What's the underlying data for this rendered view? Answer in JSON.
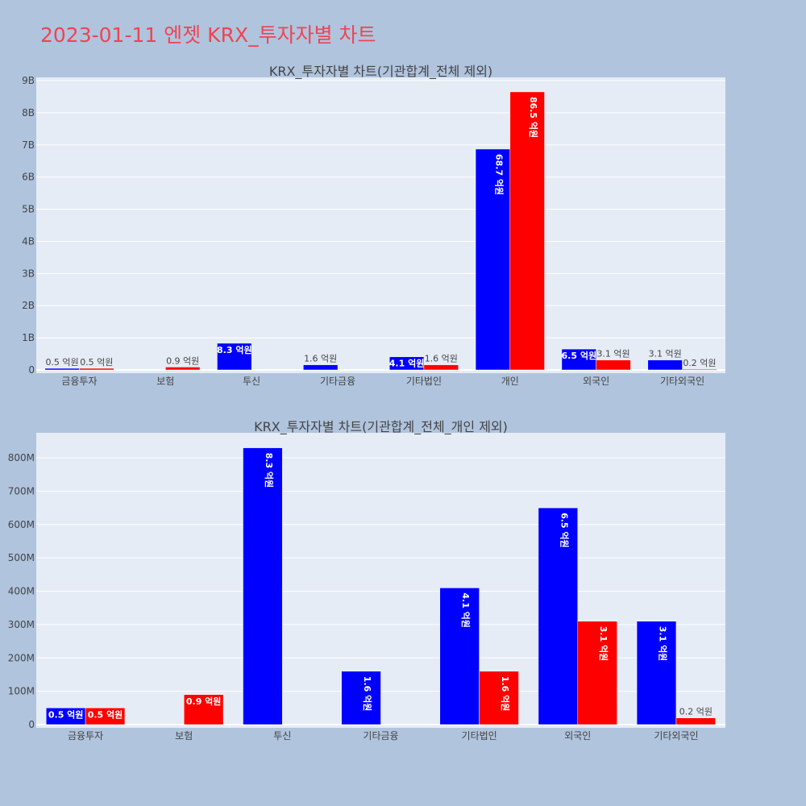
{
  "header": {
    "title": "2023-01-11 엔젯 KRX_투자자별 차트"
  },
  "colors": {
    "buy": "#0000ff",
    "sell": "#ff0000",
    "background": "#b0c4de",
    "plot_bg": "#e5ecf6",
    "title": "#ef4452"
  },
  "chart_data": [
    {
      "type": "bar",
      "title": "KRX_투자자별 차트(기관합계_전체 제외)",
      "categories": [
        "금융투자",
        "보험",
        "투신",
        "기타금융",
        "기타법인",
        "개인",
        "외국인",
        "기타외국인"
      ],
      "series": [
        {
          "color": "#0000ff",
          "values": [
            50000000,
            0,
            830000000,
            160000000,
            410000000,
            6870000000,
            650000000,
            310000000
          ],
          "labels": [
            "0.5 억원",
            "",
            "8.3 억원",
            "1.6 억원",
            "4.1 억원",
            "68.7 억원",
            "6.5 억원",
            "3.1 억원"
          ]
        },
        {
          "color": "#ff0000",
          "values": [
            50000000,
            90000000,
            0,
            0,
            160000000,
            8650000000,
            310000000,
            20000000
          ],
          "labels": [
            "0.5 억원",
            "0.9 억원",
            "",
            "",
            "1.6 억원",
            "86.5 억원",
            "3.1 억원",
            "0.2 억원"
          ]
        }
      ],
      "ylim": [
        0,
        9100000000
      ],
      "yticks": [
        0,
        1000000000,
        2000000000,
        3000000000,
        4000000000,
        5000000000,
        6000000000,
        7000000000,
        8000000000,
        9000000000
      ],
      "ytick_labels": [
        "0",
        "1B",
        "2B",
        "3B",
        "4B",
        "5B",
        "6B",
        "7B",
        "8B",
        "9B"
      ],
      "grid": true
    },
    {
      "type": "bar",
      "title": "KRX_투자자별 차트(기관합계_전체_개인 제외)",
      "categories": [
        "금융투자",
        "보험",
        "투신",
        "기타금융",
        "기타법인",
        "외국인",
        "기타외국인"
      ],
      "series": [
        {
          "color": "#0000ff",
          "values": [
            50000000,
            0,
            830000000,
            160000000,
            410000000,
            650000000,
            310000000
          ],
          "labels": [
            "0.5 억원",
            "",
            "8.3 억원",
            "1.6 억원",
            "4.1 억원",
            "6.5 억원",
            "3.1 억원"
          ]
        },
        {
          "color": "#ff0000",
          "values": [
            50000000,
            90000000,
            0,
            0,
            160000000,
            310000000,
            20000000
          ],
          "labels": [
            "0.5 억원",
            "0.9 억원",
            "",
            "",
            "1.6 억원",
            "3.1 억원",
            "0.2 억원"
          ]
        }
      ],
      "ylim": [
        0,
        875000000
      ],
      "yticks": [
        0,
        100000000,
        200000000,
        300000000,
        400000000,
        500000000,
        600000000,
        700000000,
        800000000
      ],
      "ytick_labels": [
        "0",
        "100M",
        "200M",
        "300M",
        "400M",
        "500M",
        "600M",
        "700M",
        "800M"
      ],
      "grid": true
    }
  ]
}
